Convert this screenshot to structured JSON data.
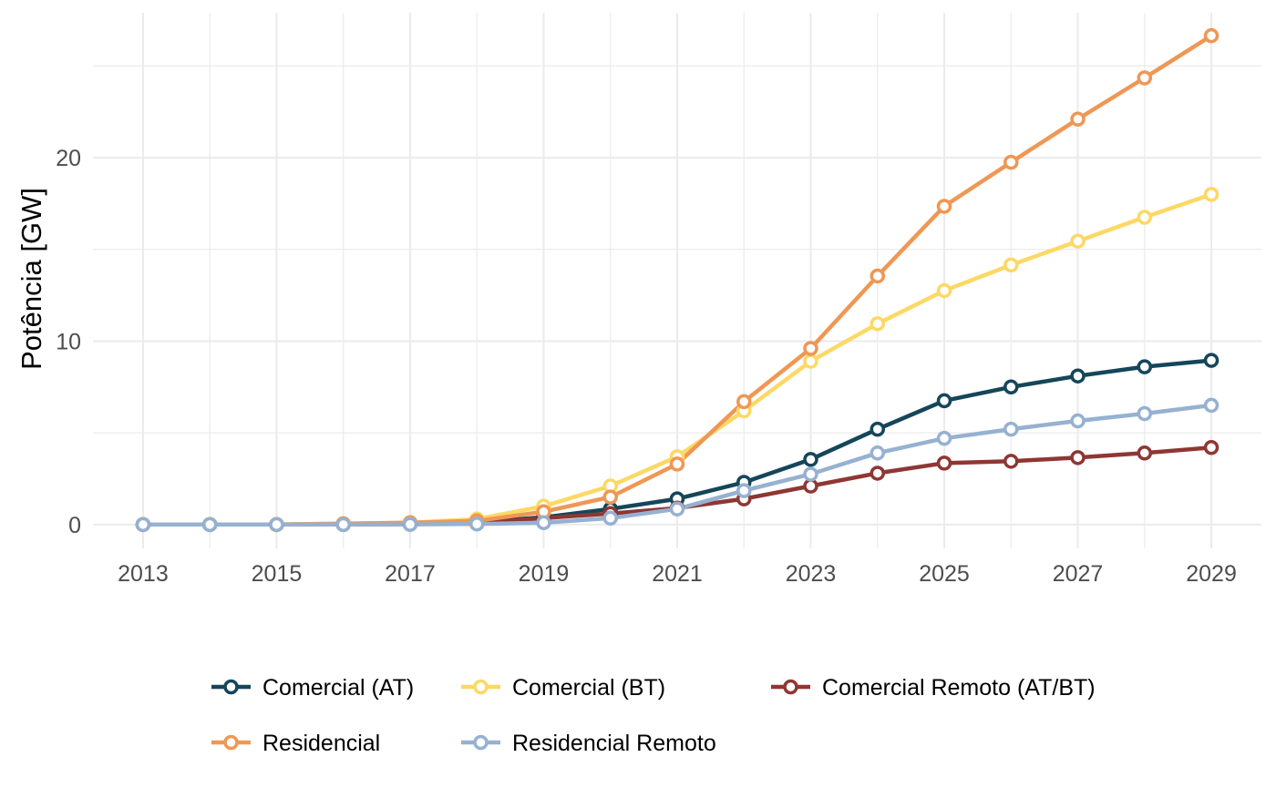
{
  "chart_data": {
    "type": "line",
    "ylabel": "Potência [GW]",
    "xlabel": "",
    "xlim": [
      2012.25,
      2029.75
    ],
    "ylim": [
      -1.3,
      27.9
    ],
    "x_ticks": [
      2013,
      2015,
      2017,
      2019,
      2021,
      2023,
      2025,
      2027,
      2029
    ],
    "y_ticks": [
      0,
      10,
      20
    ],
    "grid": true,
    "legend_position": "bottom",
    "x": [
      2013,
      2014,
      2015,
      2016,
      2017,
      2018,
      2019,
      2020,
      2021,
      2022,
      2023,
      2024,
      2025,
      2026,
      2027,
      2028,
      2029
    ],
    "series": [
      {
        "name": "Comercial (AT)",
        "color": "#15465a",
        "values": [
          0,
          0,
          0,
          0.02,
          0.05,
          0.12,
          0.4,
          0.85,
          1.4,
          2.3,
          3.55,
          5.2,
          6.75,
          7.5,
          8.1,
          8.6,
          8.95
        ]
      },
      {
        "name": "Comercial (BT)",
        "color": "#fdd865",
        "values": [
          0,
          0,
          0,
          0.05,
          0.1,
          0.3,
          1.0,
          2.1,
          3.7,
          6.2,
          8.9,
          10.95,
          12.75,
          14.15,
          15.45,
          16.75,
          18.0
        ]
      },
      {
        "name": "Comercial Remoto (AT/BT)",
        "color": "#8e3733",
        "values": [
          0,
          0,
          0,
          0,
          0.02,
          0.08,
          0.35,
          0.6,
          0.9,
          1.4,
          2.1,
          2.8,
          3.35,
          3.45,
          3.65,
          3.9,
          4.2
        ]
      },
      {
        "name": "Residencial",
        "color": "#ef9754",
        "values": [
          0,
          0,
          0,
          0.05,
          0.1,
          0.2,
          0.7,
          1.5,
          3.3,
          6.7,
          9.6,
          13.55,
          17.35,
          19.75,
          22.1,
          24.35,
          26.65
        ]
      },
      {
        "name": "Residencial Remoto",
        "color": "#96b1d1",
        "values": [
          0,
          0,
          0,
          0,
          0.01,
          0.03,
          0.1,
          0.35,
          0.85,
          1.85,
          2.75,
          3.9,
          4.7,
          5.2,
          5.65,
          6.05,
          6.5
        ]
      }
    ]
  }
}
